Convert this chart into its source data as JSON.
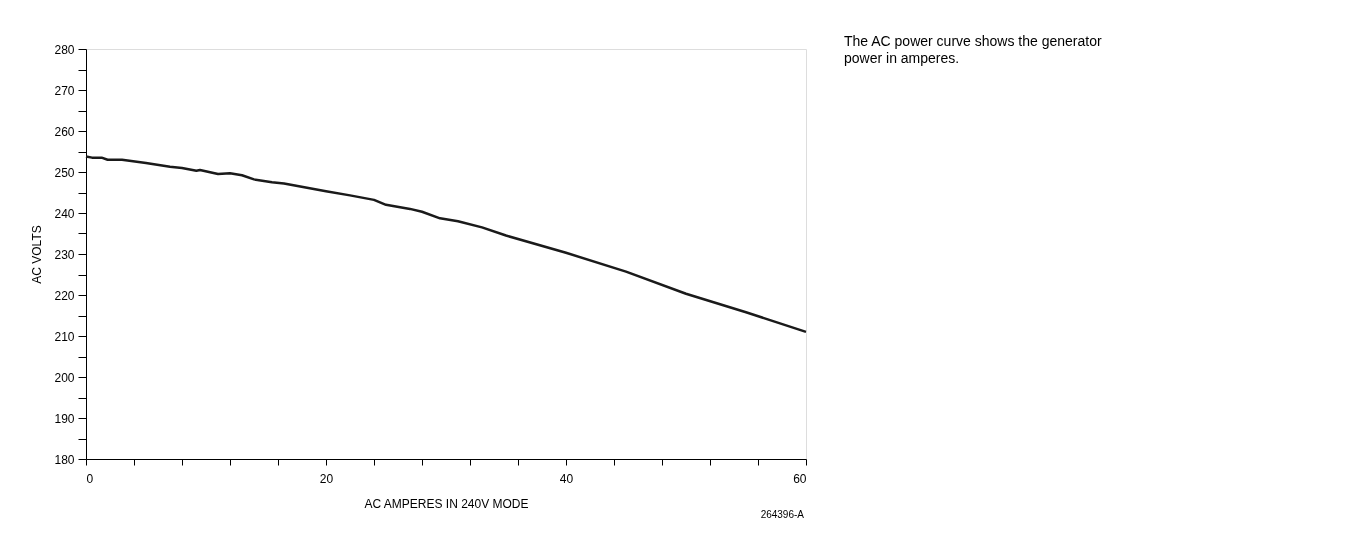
{
  "chart_data": {
    "type": "line",
    "xlabel": "AC AMPERES IN 240V MODE",
    "ylabel": "AC VOLTS",
    "x": [
      0,
      0.5,
      1.3,
      1.8,
      3,
      5,
      7,
      8,
      9.2,
      9.5,
      11,
      12,
      13,
      14,
      15.5,
      16.5,
      20,
      22,
      24,
      25,
      27,
      28,
      29.5,
      31,
      33,
      35,
      40,
      45,
      50,
      55,
      60
    ],
    "series": [
      {
        "color": "#1a1a1a",
        "values": [
          253.8,
          253.5,
          253.5,
          253,
          253,
          252.2,
          251.3,
          251,
          250.3,
          250.5,
          249.5,
          249.7,
          249.2,
          248.2,
          247.5,
          247.2,
          245.3,
          244.3,
          243.2,
          242,
          241,
          240.3,
          238.7,
          238,
          236.5,
          234.5,
          230.3,
          225.7,
          220.3,
          215.8,
          211
        ]
      }
    ],
    "xlim": [
      0,
      60
    ],
    "ylim": [
      180,
      280
    ],
    "xticks": [
      0,
      {
        "value": 4,
        "label": null
      },
      {
        "value": 8,
        "label": null
      },
      {
        "value": 12,
        "label": null
      },
      {
        "value": 16,
        "label": null
      },
      20,
      {
        "value": 24,
        "label": null
      },
      {
        "value": 28,
        "label": null
      },
      {
        "value": 32,
        "label": null
      },
      {
        "value": 36,
        "label": null
      },
      40,
      {
        "value": 44,
        "label": null
      },
      {
        "value": 48,
        "label": null
      },
      {
        "value": 52,
        "label": null
      },
      {
        "value": 56,
        "label": null
      },
      60
    ],
    "yticks": [
      180,
      {
        "value": 185,
        "label": null
      },
      190,
      {
        "value": 195,
        "label": null
      },
      200,
      {
        "value": 205,
        "label": null
      },
      210,
      {
        "value": 215,
        "label": null
      },
      220,
      {
        "value": 225,
        "label": null
      },
      230,
      {
        "value": 235,
        "label": null
      },
      240,
      {
        "value": 245,
        "label": null
      },
      250,
      {
        "value": 255,
        "label": null
      },
      260,
      {
        "value": 265,
        "label": null
      },
      270,
      {
        "value": 275,
        "label": null
      },
      280
    ],
    "grid": false,
    "legend": false,
    "marker": "none",
    "line_style": "solid",
    "annotations": [
      "The AC power curve shows the generator power in amperes.",
      "264396-A"
    ]
  }
}
